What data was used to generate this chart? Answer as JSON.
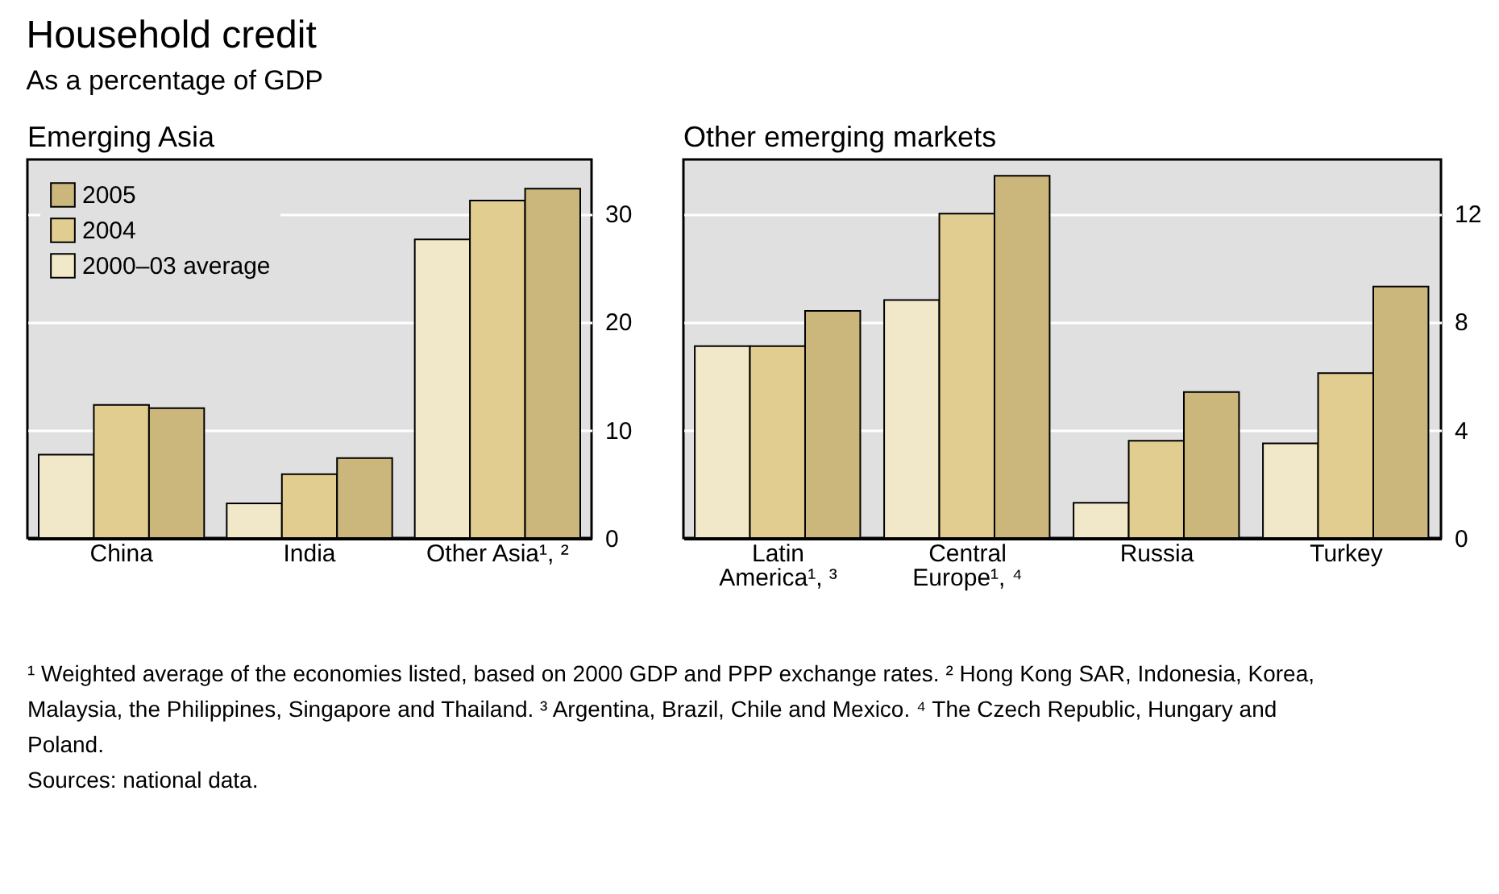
{
  "chart_data": [
    {
      "type": "other",
      "title": "Household credit",
      "subtitle": "As a percentage of GDP",
      "annotations": [
        "¹ Weighted average of the economies listed, based on 2000 GDP and PPP exchange rates.",
        "² Hong Kong SAR, Indonesia, Korea, Malaysia, the Philippines, Singapore and Thailand.",
        "³ Argentina, Brazil, Chile and Mexico.",
        "⁴ The Czech Republic, Hungary and Poland.",
        "Sources: national data."
      ]
    },
    {
      "type": "bar",
      "title": "Emerging Asia",
      "categories": [
        "China",
        "India",
        "Other Asia¹, ²"
      ],
      "series": [
        {
          "name": "2000–03 average",
          "color": "#f0e8c8",
          "values": [
            7.7,
            3.2,
            27.6
          ]
        },
        {
          "name": "2004",
          "color": "#e2cd91",
          "values": [
            12.3,
            5.9,
            31.2
          ]
        },
        {
          "name": "2005",
          "color": "#cbb67b",
          "values": [
            12.0,
            7.4,
            32.3
          ]
        }
      ],
      "ylim": [
        0,
        35
      ],
      "yticks": [
        0,
        10,
        20,
        30
      ],
      "grid": "y",
      "legend": "top left"
    },
    {
      "type": "bar",
      "title": "Other emerging markets",
      "categories": [
        "Latin America¹, ³",
        "Central Europe¹, ⁴",
        "Russia",
        "Turkey"
      ],
      "series": [
        {
          "color": "#f0e8c8",
          "values": [
            7.1,
            8.8,
            1.3,
            3.5
          ]
        },
        {
          "color": "#e2cd91",
          "values": [
            7.1,
            12.0,
            3.6,
            6.1
          ]
        },
        {
          "color": "#cbb67b",
          "values": [
            8.4,
            13.4,
            5.4,
            9.3
          ]
        }
      ],
      "ylim": [
        0,
        14
      ],
      "yticks": [
        0,
        4,
        8,
        12
      ],
      "grid": "y"
    }
  ]
}
